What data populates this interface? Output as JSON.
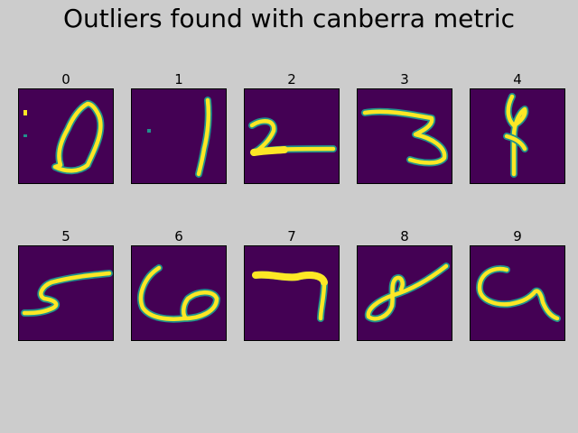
{
  "chart_data": {
    "type": "image-grid",
    "title": "Outliers found with canberra metric",
    "colormap": {
      "background": "#440154",
      "mid": "#21918c",
      "stroke": "#fde725"
    },
    "figure_background": "#cccccc",
    "panels": [
      {
        "label": "0"
      },
      {
        "label": "1"
      },
      {
        "label": "2"
      },
      {
        "label": "3"
      },
      {
        "label": "4"
      },
      {
        "label": "5"
      },
      {
        "label": "6"
      },
      {
        "label": "7"
      },
      {
        "label": "8"
      },
      {
        "label": "9"
      }
    ]
  }
}
